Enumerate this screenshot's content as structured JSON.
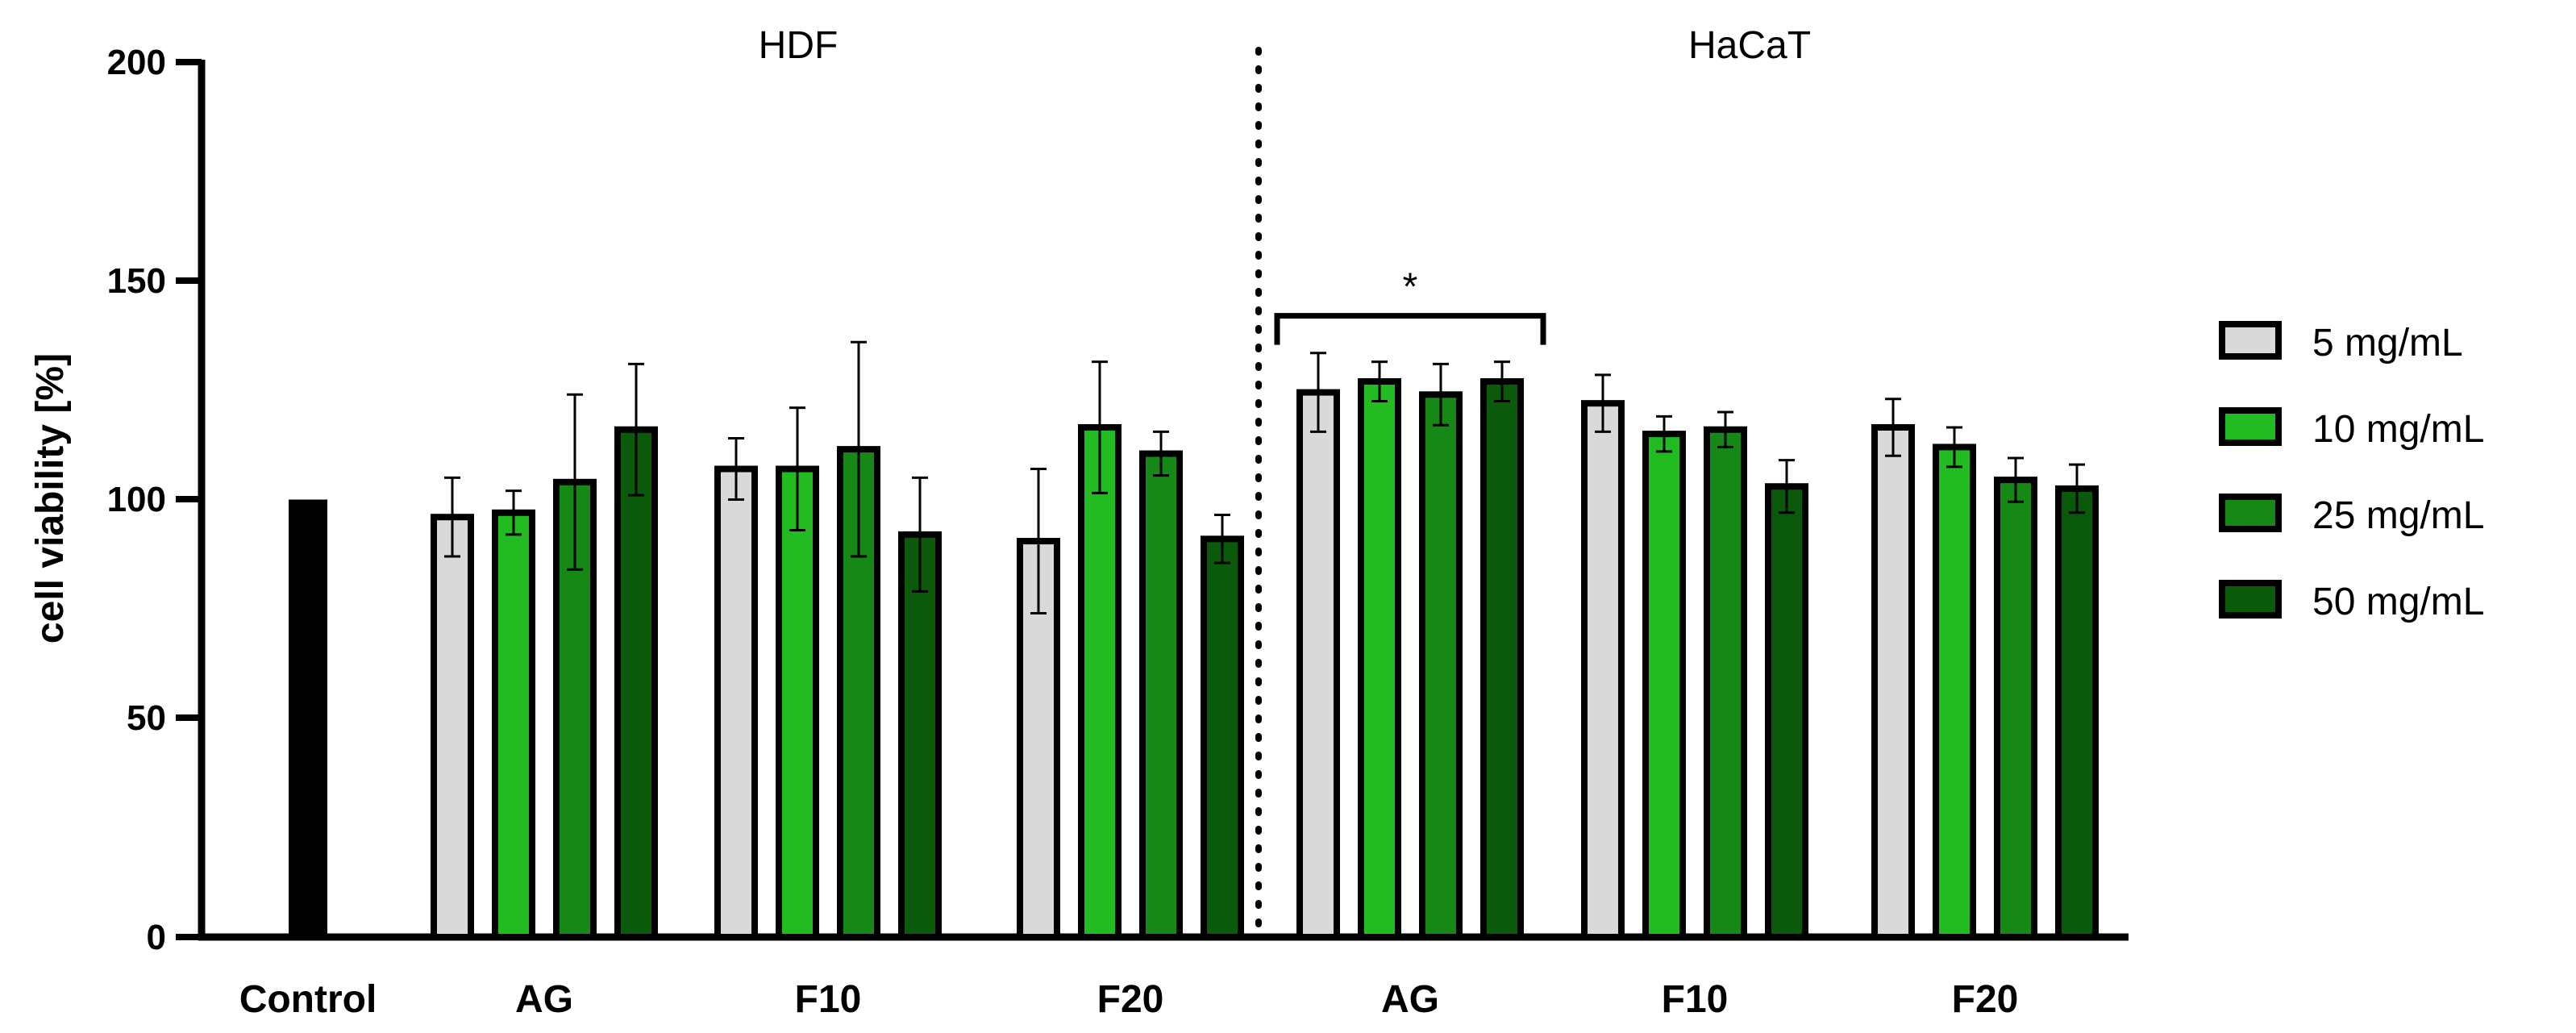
{
  "chart_data": {
    "type": "bar",
    "ylabel": "cell viability [%]",
    "xlabel": "",
    "ylim": [
      0,
      200
    ],
    "yticks": [
      0,
      50,
      100,
      150,
      200
    ],
    "group_titles": [
      "HDF",
      "HaCaT"
    ],
    "control": {
      "label": "Control",
      "value": 100,
      "color": "#000000"
    },
    "categories": [
      "AG",
      "F10",
      "F20",
      "AG",
      "F10",
      "F20"
    ],
    "cell_lines": [
      "HDF",
      "HDF",
      "HDF",
      "HaCaT",
      "HaCaT",
      "HaCaT"
    ],
    "series": [
      {
        "name": "5 mg/mL",
        "color": "#d9d9d9",
        "values": [
          96,
          107,
          90.5,
          124.5,
          122,
          116.5
        ],
        "errors": [
          9,
          7,
          16.5,
          9,
          6.5,
          6.5
        ]
      },
      {
        "name": "10 mg/mL",
        "color": "#22bb22",
        "values": [
          97,
          107,
          116.5,
          127,
          115,
          112
        ],
        "errors": [
          5,
          14,
          15,
          4.5,
          4,
          4.5
        ]
      },
      {
        "name": "25 mg/mL",
        "color": "#158815",
        "values": [
          104,
          111.5,
          110.5,
          124,
          116,
          104.5
        ],
        "errors": [
          20,
          24.5,
          5,
          7,
          4,
          5
        ]
      },
      {
        "name": "50 mg/mL",
        "color": "#0b5a0b",
        "values": [
          116,
          92,
          91,
          127,
          103,
          102.5
        ],
        "errors": [
          15,
          13,
          5.5,
          4.5,
          6,
          5.5
        ]
      }
    ],
    "annotation": {
      "text": "*",
      "group_index": 3,
      "level": 142
    },
    "legend_position": "right"
  }
}
